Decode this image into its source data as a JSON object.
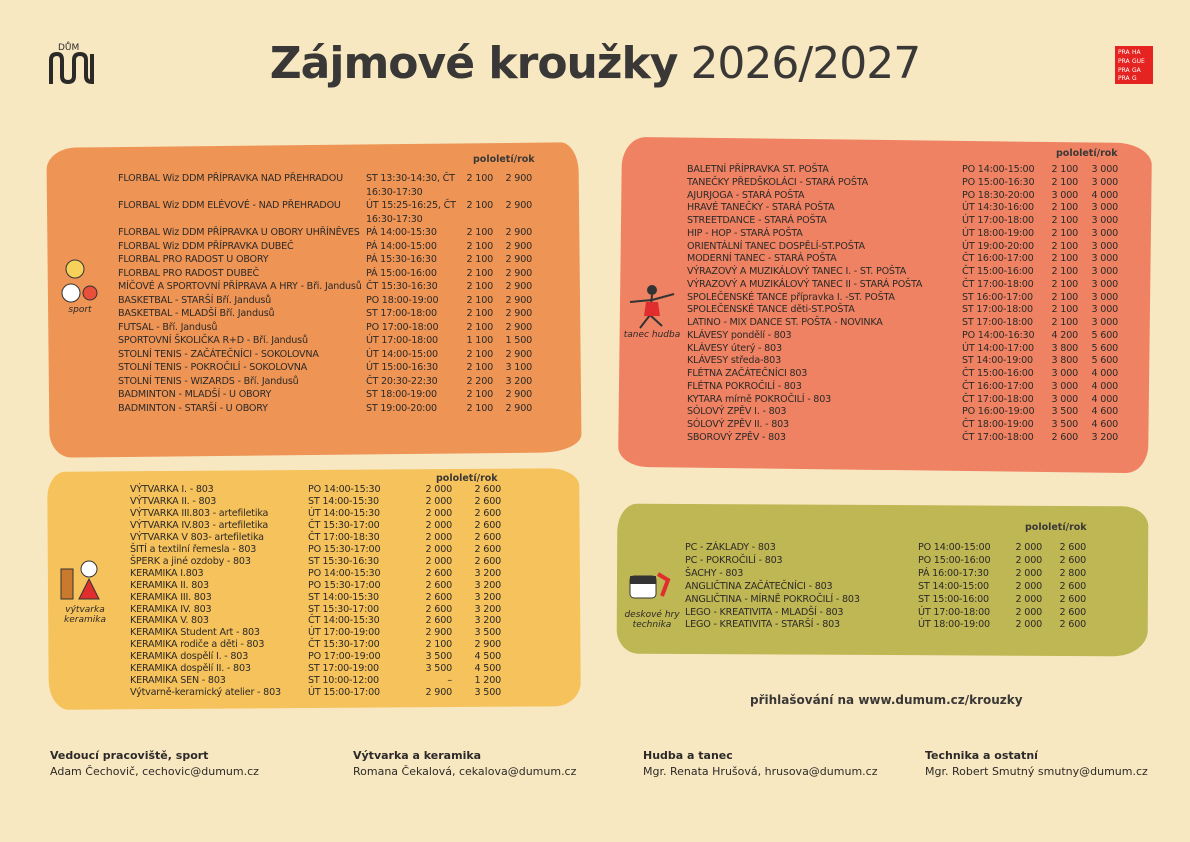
{
  "header": {
    "logo_text": "DŮM",
    "title_bold": "Zájmové kroužky",
    "title_year": "2026/2027",
    "city_logo": [
      "PRA",
      "HA",
      "PRA",
      "GUE",
      "PRA",
      "GA",
      "PRA",
      "G"
    ]
  },
  "sections": {
    "sport": {
      "label": "sport",
      "header": "pololetí/rok",
      "rows": [
        {
          "name": "FLORBAL Wiz DDM PŘÍPRAVKA NAD PŘEHRADOU",
          "time": "ST 13:30-14:30, ČT 16:30-17:30",
          "half": "2 100",
          "year": "2 900"
        },
        {
          "name": "FLORBAL Wiz DDM ELÉVOVÉ - NAD PŘEHRADOU",
          "time": "ÚT 15:25-16:25, ČT 16:30-17:30",
          "half": "2 100",
          "year": "2 900"
        },
        {
          "name": "FLORBAL Wiz DDM PŘÍPRAVKA U OBORY UHŘÍNĚVES",
          "time": "PÁ 14:00-15:30",
          "half": "2 100",
          "year": "2 900"
        },
        {
          "name": "FLORBAL Wiz DDM PŘÍPRAVKA DUBEČ",
          "time": "PÁ 14:00-15:00",
          "half": "2 100",
          "year": "2 900"
        },
        {
          "name": "FLORBAL PRO RADOST U OBORY",
          "time": "PÁ 15:30-16:30",
          "half": "2 100",
          "year": "2 900"
        },
        {
          "name": "FLORBAL PRO RADOST DUBEČ",
          "time": "PÁ 15:00-16:00",
          "half": "2 100",
          "year": "2 900"
        },
        {
          "name": "MÍČOVÉ A SPORTOVNÍ PŘÍPRAVA A HRY - Bři. Jandusů",
          "time": "ČT 15:30-16:30",
          "half": "2 100",
          "year": "2 900"
        },
        {
          "name": "BASKETBAL - STARŠÍ Bří. Jandusů",
          "time": "PO 18:00-19:00",
          "half": "2 100",
          "year": "2 900"
        },
        {
          "name": "BASKETBAL - MLADŠÍ Bří. Jandusů",
          "time": "ST 17:00-18:00",
          "half": "2 100",
          "year": "2 900"
        },
        {
          "name": "FUTSAL - Bří. Jandusů",
          "time": "PO 17:00-18:00",
          "half": "2 100",
          "year": "2 900"
        },
        {
          "name": "SPORTOVNÍ ŠKOLIČKA R+D - Bří. Jandusů",
          "time": "ÚT 17:00-18:00",
          "half": "1 100",
          "year": "1 500"
        },
        {
          "name": "STOLNÍ TENIS - ZAČÁTEČNÍCI - SOKOLOVNA",
          "time": "ÚT 14:00-15:00",
          "half": "2 100",
          "year": "2 900"
        },
        {
          "name": "STOLNÍ TENIS - POKROČILÍ - SOKOLOVNA",
          "time": "ÚT 15:00-16:30",
          "half": "2 100",
          "year": "3 100"
        },
        {
          "name": "STOLNÍ TENIS - WIZARDS - Bří. Jandusů",
          "time": "ČT 20:30-22:30",
          "half": "2 200",
          "year": "3 200"
        },
        {
          "name": "BADMINTON - MLADŠÍ - U OBORY",
          "time": "ST 18:00-19:00",
          "half": "2 100",
          "year": "2 900"
        },
        {
          "name": "BADMINTON - STARŠÍ - U OBORY",
          "time": "ST 19:00-20:00",
          "half": "2 100",
          "year": "2 900"
        }
      ]
    },
    "dance": {
      "label": "tanec hudba",
      "header": "pololetí/rok",
      "rows": [
        {
          "name": "BALETNÍ PŘÍPRAVKA ST. POŠTA",
          "time": "PO 14:00-15:00",
          "half": "2 100",
          "year": "3 000"
        },
        {
          "name": "TANEČKY PŘEDŠKOLÁCI - STARÁ POŠTA",
          "time": "PO 15:00-16:30",
          "half": "2 100",
          "year": "3 000"
        },
        {
          "name": "AJURJOGA - STARÁ POŠTA",
          "time": "PO 18:30-20:00",
          "half": "3 000",
          "year": "4 000"
        },
        {
          "name": "HRAVÉ TANEČKY - STARÁ POŠTA",
          "time": "ÚT 14:30-16:00",
          "half": "2 100",
          "year": "3 000"
        },
        {
          "name": "STREETDANCE - STARÁ POŠTA",
          "time": "ÚT 17:00-18:00",
          "half": "2 100",
          "year": "3 000"
        },
        {
          "name": "HIP - HOP - STARÁ POŠTA",
          "time": "ÚT 18:00-19:00",
          "half": "2 100",
          "year": "3 000"
        },
        {
          "name": "ORIENTÁLNÍ TANEC DOSPĚLÍ-ST.POŠTA",
          "time": "ÚT 19:00-20:00",
          "half": "2 100",
          "year": "3 000"
        },
        {
          "name": "MODERNÍ TANEC - STARÁ POŠTA",
          "time": "ČT 16:00-17:00",
          "half": "2 100",
          "year": "3 000"
        },
        {
          "name": "VÝRAZOVÝ A MUZIKÁLOVÝ TANEC I. - ST. POŠTA",
          "time": "ČT 15:00-16:00",
          "half": "2 100",
          "year": "3 000"
        },
        {
          "name": "VÝRAZOVÝ A MUZIKÁLOVÝ TANEC II - STARÁ POŠTA",
          "time": "ČT 17:00-18:00",
          "half": "2 100",
          "year": "3 000"
        },
        {
          "name": "SPOLEČENSKÉ TANCE přípravka I. -ST. POŠTA",
          "time": "ST 16:00-17:00",
          "half": "2 100",
          "year": "3 000"
        },
        {
          "name": "SPOLEČENSKÉ TANCE děti-ST.POŠTA",
          "time": "ST 17:00-18:00",
          "half": "2 100",
          "year": "3 000"
        },
        {
          "name": "LATINO - MIX DANCE ST. POŠTA - NOVINKA",
          "time": "ST 17:00-18:00",
          "half": "2 100",
          "year": "3 000"
        },
        {
          "name": "KLÁVESY pondělí - 803",
          "time": "PO 14:00-16:30",
          "half": "4 200",
          "year": "5 600"
        },
        {
          "name": "KLÁVESY úterý - 803",
          "time": "ÚT 14:00-17:00",
          "half": "3 800",
          "year": "5 600"
        },
        {
          "name": "KLÁVESY středa-803",
          "time": "ST 14:00-19:00",
          "half": "3 800",
          "year": "5 600"
        },
        {
          "name": "FLÉTNA ZAČÁTEČNÍCI 803",
          "time": "ČT 15:00-16:00",
          "half": "3 000",
          "year": "4 000"
        },
        {
          "name": "FLÉTNA POKROČILÍ - 803",
          "time": "ČT 16:00-17:00",
          "half": "3 000",
          "year": "4 000"
        },
        {
          "name": "KYTARA mírně POKROČILÍ - 803",
          "time": "ČT 17:00-18:00",
          "half": "3 000",
          "year": "4 000"
        },
        {
          "name": "SÓLOVÝ ZPĚV I. - 803",
          "time": "PO 16:00-19:00",
          "half": "3 500",
          "year": "4 600"
        },
        {
          "name": "SÓLOVÝ ZPĚV II. - 803",
          "time": "ČT 18:00-19:00",
          "half": "3 500",
          "year": "4 600"
        },
        {
          "name": "SBOROVÝ ZPĚV - 803",
          "time": "ČT 17:00-18:00",
          "half": "2 600",
          "year": "3 200"
        }
      ]
    },
    "art": {
      "label": "výtvarka keramika",
      "header": "pololetí/rok",
      "rows": [
        {
          "name": "VÝTVARKA I. - 803",
          "time": "PO 14:00-15:30",
          "half": "2 000",
          "year": "2 600"
        },
        {
          "name": "VÝTVARKA II. - 803",
          "time": "ST 14:00-15:30",
          "half": "2 000",
          "year": "2 600"
        },
        {
          "name": "VÝTVARKA III.803 - artefiletika",
          "time": "ÚT 14:00-15:30",
          "half": "2 000",
          "year": "2 600"
        },
        {
          "name": "VÝTVARKA IV.803 - artefiletika",
          "time": "ČT 15:30-17:00",
          "half": "2 000",
          "year": "2 600"
        },
        {
          "name": "VÝTVARKA V 803- artefiletika",
          "time": "ČT 17:00-18:30",
          "half": "2 000",
          "year": "2 600"
        },
        {
          "name": "ŠITÍ a textilní řemesla - 803",
          "time": "PO 15:30-17:00",
          "half": "2 000",
          "year": "2 600"
        },
        {
          "name": "ŠPERK a jiné ozdoby - 803",
          "time": "ST 15:30-16:30",
          "half": "2 000",
          "year": "2 600"
        },
        {
          "name": "KERAMIKA I.803",
          "time": "PO 14:00-15:30",
          "half": "2 600",
          "year": "3 200"
        },
        {
          "name": "KERAMIKA II. 803",
          "time": "PO 15:30-17:00",
          "half": "2 600",
          "year": "3 200"
        },
        {
          "name": "KERAMIKA III. 803",
          "time": "ST 14:00-15:30",
          "half": "2 600",
          "year": "3 200"
        },
        {
          "name": "KERAMIKA IV. 803",
          "time": "ST 15:30-17:00",
          "half": "2 600",
          "year": "3 200"
        },
        {
          "name": "KERAMIKA V. 803",
          "time": "ČT 14:00-15:30",
          "half": "2 600",
          "year": "3 200"
        },
        {
          "name": "KERAMIKA Student Art - 803",
          "time": "ÚT 17:00-19:00",
          "half": "2 900",
          "year": "3 500"
        },
        {
          "name": "KERAMIKA rodiče a děti - 803",
          "time": "ČT 15:30-17:00",
          "half": "2 100",
          "year": "2 900"
        },
        {
          "name": "KERAMIKA dospělí I. - 803",
          "time": "PO 17:00-19:00",
          "half": "3 500",
          "year": "4 500"
        },
        {
          "name": "KERAMIKA dospělí II. - 803",
          "time": "ST 17:00-19:00",
          "half": "3 500",
          "year": "4 500"
        },
        {
          "name": "KERAMIKA SEN - 803",
          "time": "ST 10:00-12:00",
          "half": "–",
          "year": "1 200"
        },
        {
          "name": "Výtvarně-keramický atelier - 803",
          "time": "ÚT 15:00-17:00",
          "half": "2 900",
          "year": "3 500"
        }
      ]
    },
    "tech": {
      "label": "deskové hry technika",
      "header": "pololetí/rok",
      "rows": [
        {
          "name": "PC - ZÁKLADY - 803",
          "time": "PO 14:00-15:00",
          "half": "2 000",
          "year": "2 600"
        },
        {
          "name": "PC - POKROČILÍ - 803",
          "time": "PO 15:00-16:00",
          "half": "2 000",
          "year": "2 600"
        },
        {
          "name": "ŠACHY - 803",
          "time": "PÁ 16:00-17:30",
          "half": "2 000",
          "year": "2 800"
        },
        {
          "name": "ANGLIČTINA ZAČÁTEČNÍCI - 803",
          "time": "ST 14:00-15:00",
          "half": "2 000",
          "year": "2 600"
        },
        {
          "name": "ANGLIČTINA - MÍRNĚ POKROČILÍ - 803",
          "time": "ST 15:00-16:00",
          "half": "2 000",
          "year": "2 600"
        },
        {
          "name": "LEGO - KREATIVITA - MLADŠÍ - 803",
          "time": "ÚT 17:00-18:00",
          "half": "2 000",
          "year": "2 600"
        },
        {
          "name": "LEGO - KREATIVITA - STARŠÍ - 803",
          "time": "ÚT 18:00-19:00",
          "half": "2 000",
          "year": "2 600"
        }
      ]
    }
  },
  "registration": "přihlašování na www.dumum.cz/krouzky",
  "contacts": [
    {
      "heading": "Vedoucí pracoviště, sport",
      "text": "Adam Čechovič, cechovic@dumum.cz"
    },
    {
      "heading": "Výtvarka a keramika",
      "text": "Romana Čekalová, cekalova@dumum.cz"
    },
    {
      "heading": "Hudba a tanec",
      "text": "Mgr. Renata Hrušová, hrusova@dumum.cz"
    },
    {
      "heading": "Technika a ostatní",
      "text": "Mgr. Robert Smutný smutny@dumum.cz"
    }
  ]
}
